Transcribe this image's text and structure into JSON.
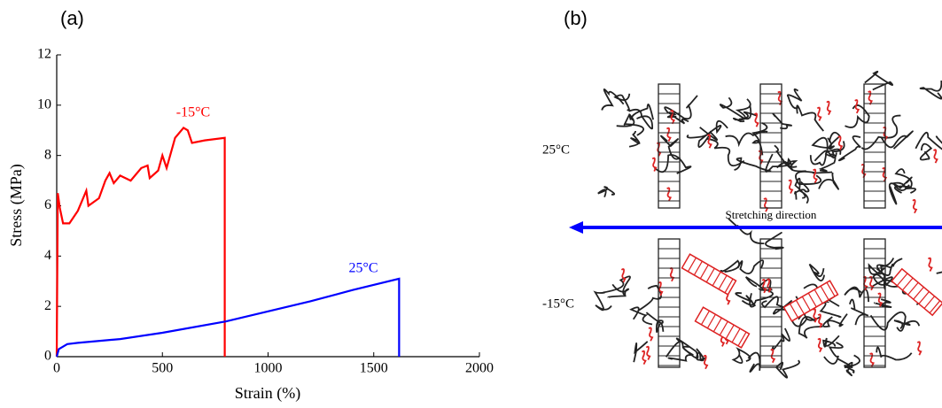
{
  "panel_labels": [
    "(a)",
    "(b)"
  ],
  "chart_data": {
    "type": "line",
    "xlabel": "Strain (%)",
    "ylabel": "Stress (MPa)",
    "xlim": [
      0,
      2000
    ],
    "xticks": [
      0,
      500,
      1000,
      1500,
      2000
    ],
    "ylim": [
      0,
      12
    ],
    "yticks": [
      0,
      2,
      4,
      6,
      8,
      10,
      12
    ],
    "series": [
      {
        "name": "-15°C",
        "color": "#ff0000",
        "x": [
          0,
          5,
          15,
          30,
          60,
          100,
          120,
          140,
          150,
          200,
          230,
          250,
          270,
          300,
          350,
          400,
          430,
          440,
          480,
          500,
          520,
          560,
          600,
          620,
          640,
          700,
          795,
          795
        ],
        "values": [
          0,
          6.5,
          5.9,
          5.3,
          5.3,
          5.8,
          6.2,
          6.6,
          6.0,
          6.3,
          7.0,
          7.3,
          6.9,
          7.2,
          7.0,
          7.5,
          7.6,
          7.1,
          7.4,
          8.0,
          7.5,
          8.7,
          9.1,
          9.0,
          8.5,
          8.6,
          8.7,
          0
        ]
      },
      {
        "name": "25°C",
        "color": "#0000ff",
        "x": [
          0,
          10,
          50,
          100,
          300,
          500,
          800,
          1000,
          1200,
          1400,
          1620,
          1620
        ],
        "values": [
          0,
          0.3,
          0.5,
          0.55,
          0.7,
          0.95,
          1.4,
          1.8,
          2.2,
          2.65,
          3.1,
          0
        ]
      }
    ]
  },
  "diagram": {
    "rows": [
      {
        "label": "25°C"
      },
      {
        "label": "-15°C"
      }
    ],
    "arrow_label": "Stretching direction"
  }
}
